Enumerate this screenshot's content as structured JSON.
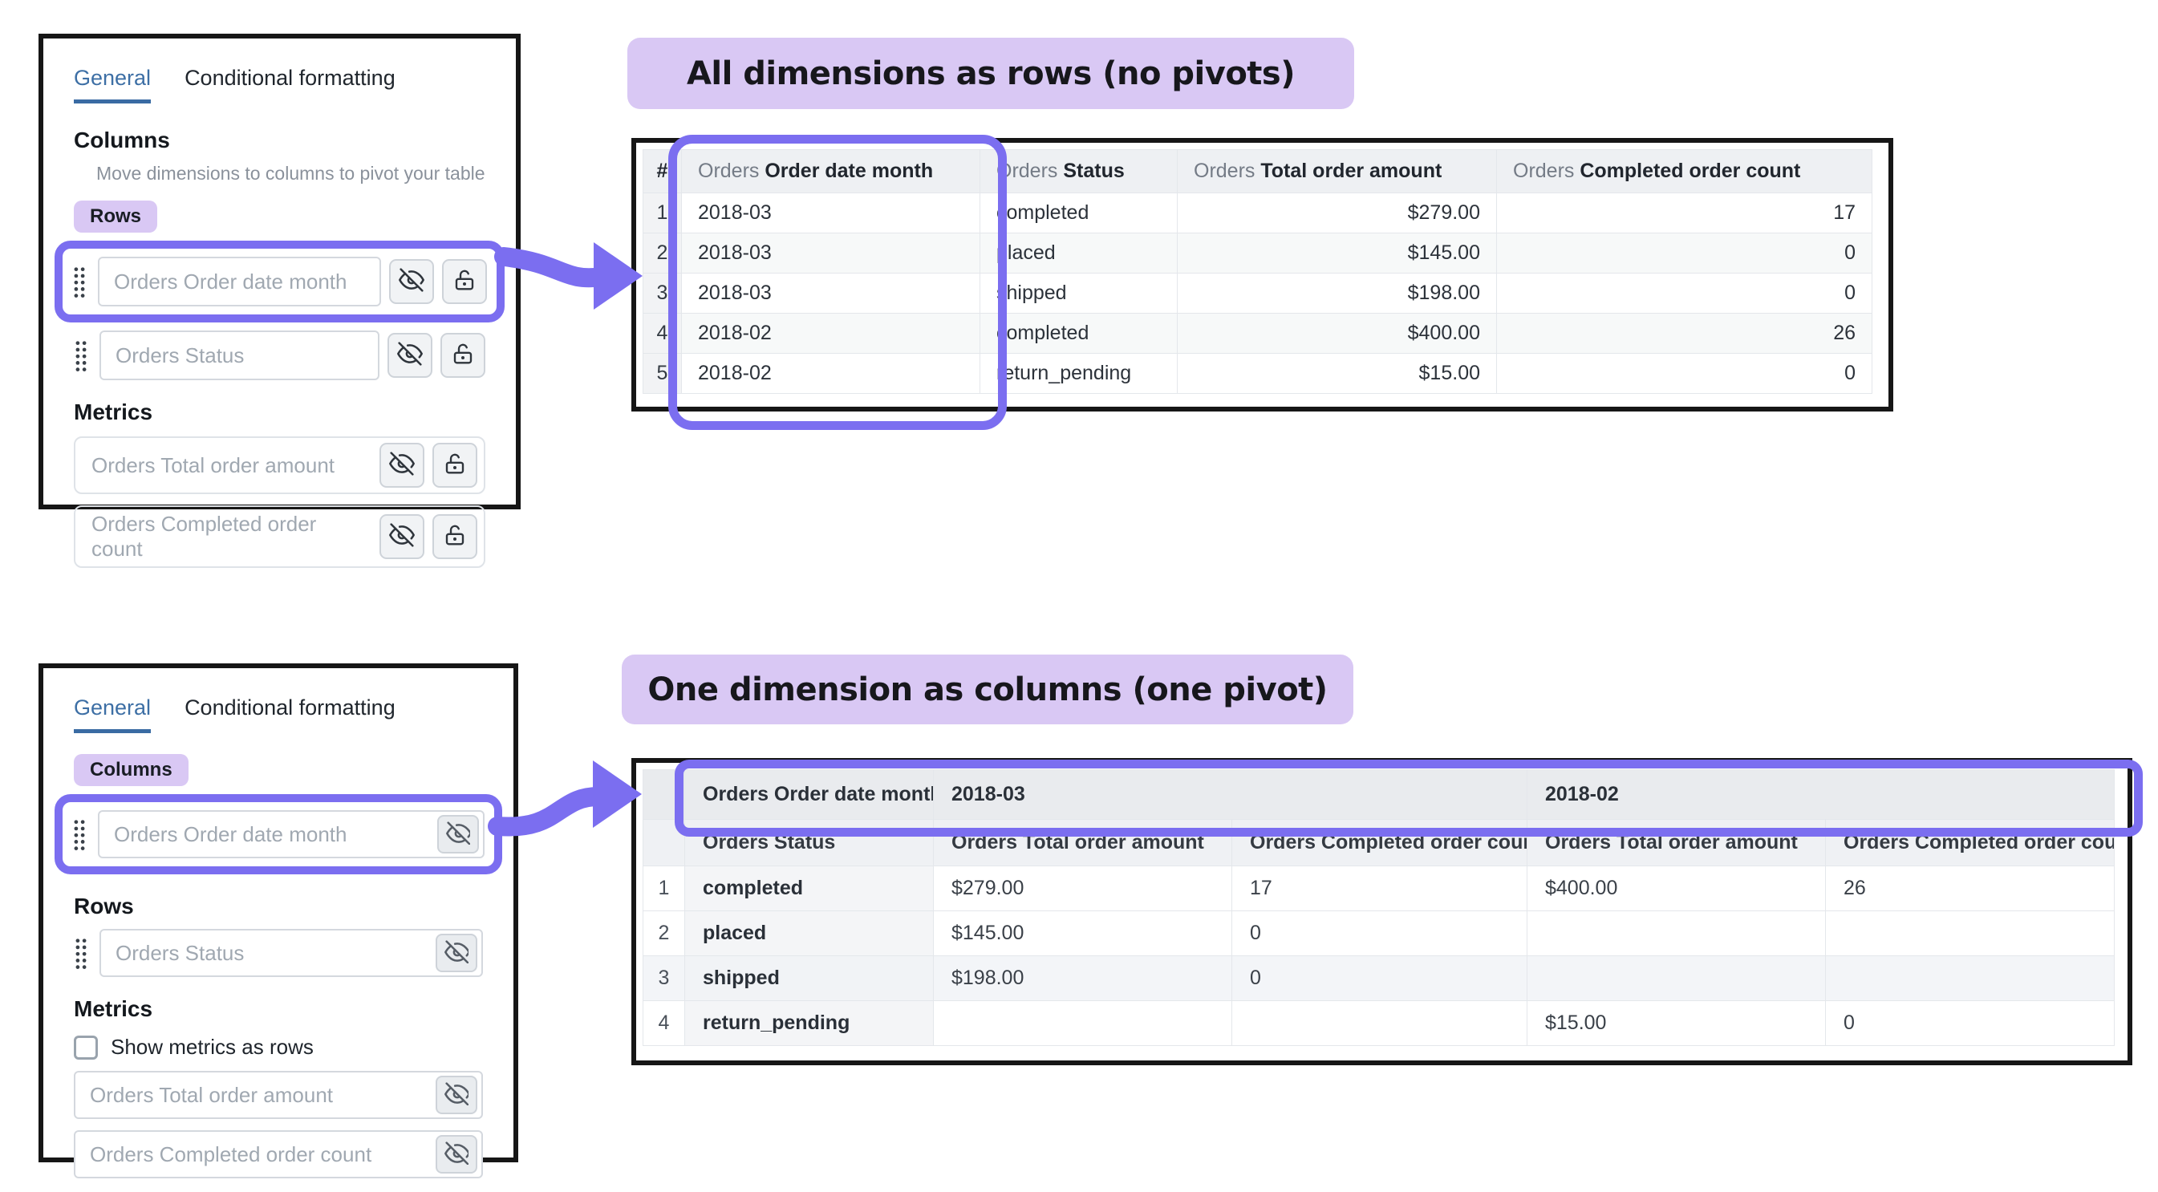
{
  "colors": {
    "accent_purple": "#7b6ef0",
    "banner_purple": "#d9c8f4",
    "tab_active_blue": "#3d6fa5",
    "panel_border": "#161616",
    "table_header_bg": "#eef0f3",
    "stripe_bg": "#f7f9f9"
  },
  "banner_no_pivot": {
    "title": "All dimensions as rows (no pivots)"
  },
  "banner_one_pivot": {
    "title": "One dimension as columns (one pivot)"
  },
  "panel_no_pivot": {
    "tabs": {
      "general": "General",
      "conditional": "Conditional formatting"
    },
    "columns_heading": "Columns",
    "columns_hint": "Move dimensions to columns to pivot your table",
    "rows_heading": "Rows",
    "row_fields": {
      "first": "Orders Order date month",
      "second": "Orders Status"
    },
    "metrics_heading": "Metrics",
    "metric_fields": {
      "first": "Orders Total order amount",
      "second": "Orders Completed order count"
    }
  },
  "panel_one_pivot": {
    "tabs": {
      "general": "General",
      "conditional": "Conditional formatting"
    },
    "columns_heading": "Columns",
    "columns_field": "Orders Order date month",
    "rows_heading": "Rows",
    "rows_field": "Orders Status",
    "metrics_heading": "Metrics",
    "show_metrics_label": "Show metrics as rows",
    "metric_fields": {
      "first": "Orders Total order amount",
      "second": "Orders Completed order count"
    }
  },
  "table_no_pivot": {
    "index_header": "#",
    "columns": [
      {
        "prefix": "Orders",
        "name": "Order date month"
      },
      {
        "prefix": "Orders",
        "name": "Status"
      },
      {
        "prefix": "Orders",
        "name": "Total order amount"
      },
      {
        "prefix": "Orders",
        "name": "Completed order count"
      }
    ],
    "rows": [
      [
        "1",
        "2018-03",
        "completed",
        "$279.00",
        "17"
      ],
      [
        "2",
        "2018-03",
        "placed",
        "$145.00",
        "0"
      ],
      [
        "3",
        "2018-03",
        "shipped",
        "$198.00",
        "0"
      ],
      [
        "4",
        "2018-02",
        "completed",
        "$400.00",
        "26"
      ],
      [
        "5",
        "2018-02",
        "return_pending",
        "$15.00",
        "0"
      ]
    ]
  },
  "table_one_pivot": {
    "pivot_row": {
      "label": "Orders Order date month",
      "values": [
        "2018-03",
        "2018-02"
      ]
    },
    "header": [
      "Orders Status",
      "Orders Total order amount",
      "Orders Completed order count",
      "Orders Total order amount",
      "Orders Completed order count"
    ],
    "rows": [
      {
        "n": "1",
        "status": "completed",
        "cells": [
          "$279.00",
          "17",
          "$400.00",
          "26"
        ]
      },
      {
        "n": "2",
        "status": "placed",
        "cells": [
          "$145.00",
          "0",
          "",
          ""
        ]
      },
      {
        "n": "3",
        "status": "shipped",
        "cells": [
          "$198.00",
          "0",
          "",
          ""
        ]
      },
      {
        "n": "4",
        "status": "return_pending",
        "cells": [
          "",
          "",
          "$15.00",
          "0"
        ]
      }
    ]
  }
}
